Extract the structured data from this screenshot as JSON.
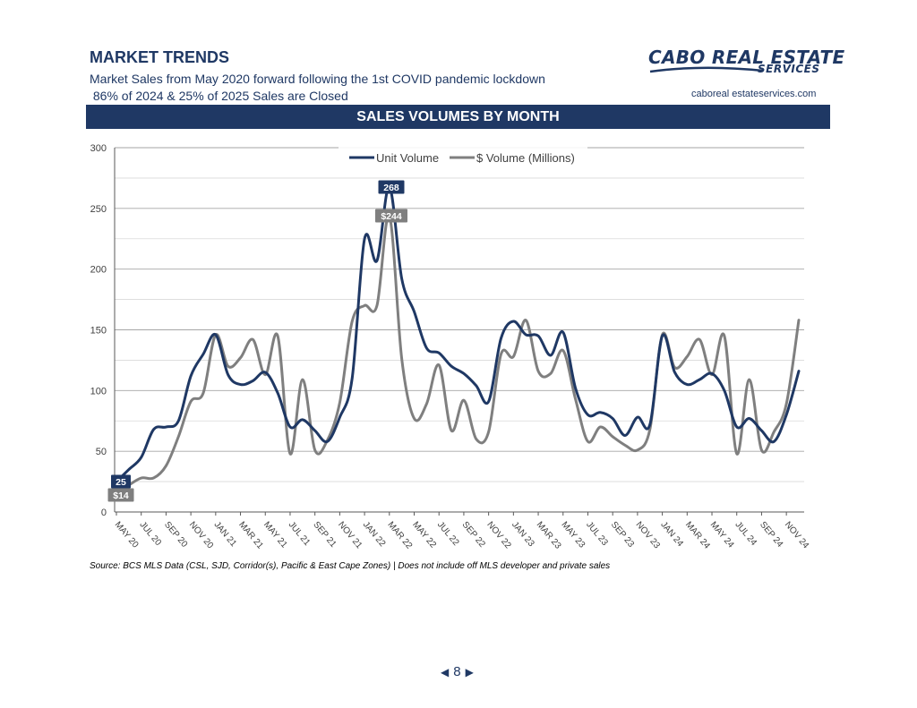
{
  "header": {
    "title": "MARKET TRENDS",
    "subtitle_line1": "Market Sales from May 2020 forward following the 1st COVID pandemic lockdown",
    "subtitle_line2": " 86% of 2024 & 25% of 2025 Sales are Closed"
  },
  "logo": {
    "main": "CABO REAL ESTATE",
    "sub": "SERVICES",
    "url": "caboreal estateservices.com"
  },
  "banner": {
    "title": "SALES VOLUMES BY MONTH"
  },
  "chart_data": {
    "type": "line",
    "title": "SALES VOLUMES BY MONTH",
    "ylim": [
      0,
      300
    ],
    "yticks": [
      0,
      50,
      100,
      150,
      200,
      250,
      300
    ],
    "grid": true,
    "legend_position": "top-center",
    "tick_labels": [
      "MAY 20",
      "JUL 20",
      "SEP 20",
      "NOV 20",
      "JAN 21",
      "MAR 21",
      "MAY 21",
      "JUL 21",
      "SEP 21",
      "NOV 21",
      "JAN 22",
      "MAR 22",
      "MAY 22",
      "JUL 22",
      "SEP 22",
      "NOV 22",
      "JAN 23",
      "MAR 23",
      "MAY 23",
      "JUL 23",
      "SEP 23",
      "NOV 23",
      "JAN 24",
      "MAR 24",
      "MAY 24",
      "JUL 24",
      "SEP 24",
      "NOV 24"
    ],
    "months": [
      "MAY 20",
      "JUN 20",
      "JUL 20",
      "AUG 20",
      "SEP 20",
      "OCT 20",
      "NOV 20",
      "DEC 20",
      "JAN 21",
      "FEB 21",
      "MAR 21",
      "APR 21",
      "MAY 21",
      "JUN 21",
      "JUL 21",
      "AUG 21",
      "SEP 21",
      "OCT 21",
      "NOV 21",
      "DEC 21",
      "JAN 22",
      "FEB 22",
      "MAR 22",
      "APR 22",
      "MAY 22",
      "JUN 22",
      "JUL 22",
      "AUG 22",
      "SEP 22",
      "OCT 22",
      "NOV 22",
      "DEC 22",
      "JAN 23",
      "FEB 23",
      "MAR 23",
      "APR 23",
      "MAY 23",
      "JUN 23",
      "JUL 23",
      "AUG 23",
      "SEP 23",
      "OCT 23",
      "NOV 23",
      "DEC 23",
      "JAN 24",
      "FEB 24",
      "MAR 24",
      "APR 24",
      "MAY 24",
      "JUN 24",
      "JUL 24",
      "AUG 24",
      "SEP 24",
      "OCT 24",
      "NOV 24",
      "DEC 24"
    ],
    "series": [
      {
        "name": "Unit Volume",
        "color": "#1f3864",
        "values": [
          25,
          35,
          45,
          68,
          70,
          75,
          112,
          130,
          146,
          113,
          105,
          108,
          115,
          98,
          70,
          76,
          67,
          58,
          78,
          110,
          225,
          207,
          268,
          192,
          165,
          135,
          131,
          120,
          114,
          104,
          91,
          143,
          157,
          146,
          145,
          129,
          148,
          102,
          80,
          82,
          77,
          63,
          78,
          72,
          145,
          115,
          105,
          109,
          114,
          100,
          70,
          77,
          67,
          58,
          80,
          116
        ]
      },
      {
        "name": "$ Volume (Millions)",
        "color": "#7f7f7f",
        "values": [
          14,
          22,
          28,
          28,
          38,
          62,
          91,
          98,
          146,
          120,
          127,
          142,
          113,
          145,
          48,
          109,
          51,
          59,
          90,
          157,
          170,
          170,
          244,
          126,
          77,
          89,
          121,
          67,
          92,
          60,
          66,
          130,
          128,
          158,
          116,
          114,
          133,
          93,
          58,
          70,
          62,
          55,
          51,
          68,
          146,
          119,
          128,
          142,
          113,
          145,
          48,
          109,
          51,
          66,
          89,
          158
        ]
      }
    ],
    "annotations": [
      {
        "series": "Unit Volume",
        "month": "MAY 20",
        "label": "25"
      },
      {
        "series": "$ Volume (Millions)",
        "month": "MAY 20",
        "label": "$14"
      },
      {
        "series": "Unit Volume",
        "month": "MAR 22",
        "label": "268"
      },
      {
        "series": "$ Volume (Millions)",
        "month": "MAR 22",
        "label": "$244"
      }
    ]
  },
  "footer": {
    "source": "Source:  BCS MLS Data (CSL, SJD, Corridor(s), Pacific & East Cape Zones) | Does not include off MLS developer and private sales",
    "page_number": "8",
    "prev_arrow": "◀",
    "next_arrow": "▶"
  }
}
